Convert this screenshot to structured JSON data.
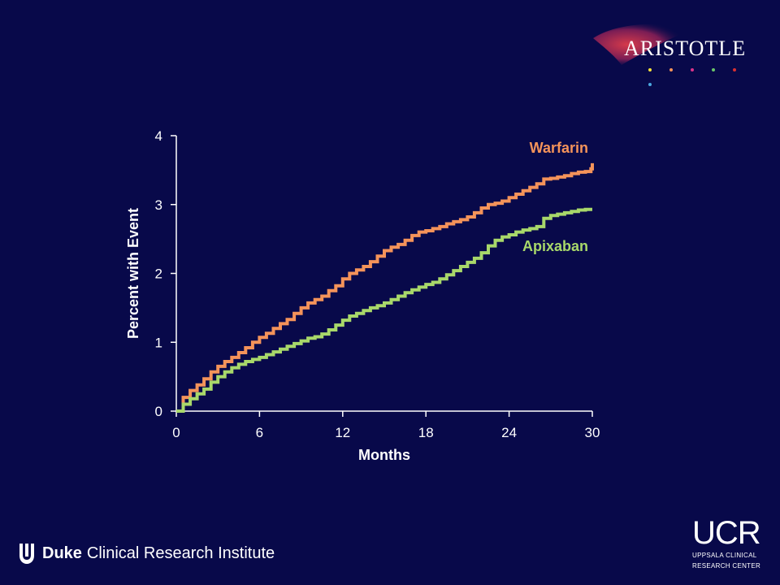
{
  "chart_data": {
    "type": "line",
    "step": true,
    "xlabel": "Months",
    "ylabel": "Percent with Event",
    "xlim": [
      0,
      30
    ],
    "ylim": [
      0,
      4
    ],
    "xticks": [
      0,
      6,
      12,
      18,
      24,
      30
    ],
    "yticks": [
      0,
      1,
      2,
      3,
      4
    ],
    "grid": false,
    "series": [
      {
        "name": "Warfarin",
        "color": "#f4935a",
        "x": [
          0,
          0.5,
          1,
          1.5,
          2,
          2.5,
          3,
          3.5,
          4,
          4.5,
          5,
          5.5,
          6,
          6.5,
          7,
          7.5,
          8,
          8.5,
          9,
          9.5,
          10,
          10.5,
          11,
          11.5,
          12,
          12.5,
          13,
          13.5,
          14,
          14.5,
          15,
          15.5,
          16,
          16.5,
          17,
          17.5,
          18,
          18.5,
          19,
          19.5,
          20,
          20.5,
          21,
          21.5,
          22,
          22.5,
          23,
          23.5,
          24,
          24.5,
          25,
          25.5,
          26,
          26.5,
          27,
          27.5,
          28,
          28.5,
          29,
          29.5,
          29.9,
          30
        ],
        "y": [
          0,
          0.2,
          0.3,
          0.38,
          0.47,
          0.57,
          0.65,
          0.72,
          0.78,
          0.85,
          0.92,
          1.0,
          1.07,
          1.13,
          1.2,
          1.27,
          1.33,
          1.42,
          1.5,
          1.57,
          1.62,
          1.67,
          1.75,
          1.82,
          1.92,
          2.0,
          2.05,
          2.1,
          2.17,
          2.25,
          2.33,
          2.38,
          2.42,
          2.48,
          2.55,
          2.6,
          2.62,
          2.65,
          2.68,
          2.72,
          2.75,
          2.78,
          2.82,
          2.88,
          2.95,
          3.0,
          3.02,
          3.05,
          3.1,
          3.15,
          3.2,
          3.25,
          3.3,
          3.37,
          3.38,
          3.4,
          3.42,
          3.45,
          3.47,
          3.48,
          3.52,
          3.6
        ]
      },
      {
        "name": "Apixaban",
        "color": "#a8d86a",
        "x": [
          0,
          0.5,
          1,
          1.5,
          2,
          2.5,
          3,
          3.5,
          4,
          4.5,
          5,
          5.5,
          6,
          6.5,
          7,
          7.5,
          8,
          8.5,
          9,
          9.5,
          10,
          10.5,
          11,
          11.5,
          12,
          12.5,
          13,
          13.5,
          14,
          14.5,
          15,
          15.5,
          16,
          16.5,
          17,
          17.5,
          18,
          18.5,
          19,
          19.5,
          20,
          20.5,
          21,
          21.5,
          22,
          22.5,
          23,
          23.5,
          24,
          24.5,
          25,
          25.5,
          26,
          26.5,
          27,
          27.5,
          28,
          28.5,
          29,
          29.5,
          30
        ],
        "y": [
          0,
          0.1,
          0.18,
          0.25,
          0.32,
          0.42,
          0.5,
          0.57,
          0.63,
          0.68,
          0.72,
          0.75,
          0.78,
          0.82,
          0.86,
          0.9,
          0.94,
          0.98,
          1.02,
          1.06,
          1.08,
          1.12,
          1.18,
          1.25,
          1.32,
          1.38,
          1.42,
          1.46,
          1.5,
          1.53,
          1.57,
          1.62,
          1.67,
          1.72,
          1.76,
          1.8,
          1.84,
          1.87,
          1.92,
          1.98,
          2.04,
          2.1,
          2.16,
          2.22,
          2.3,
          2.4,
          2.48,
          2.53,
          2.56,
          2.6,
          2.63,
          2.65,
          2.68,
          2.8,
          2.84,
          2.86,
          2.88,
          2.9,
          2.92,
          2.93,
          2.93
        ]
      }
    ]
  },
  "logos": {
    "aristotle": "ARISTOTLE",
    "aristotle_dot_colors": [
      "#f7e23a",
      "#f4935a",
      "#d9348a",
      "#6ac46a",
      "#d93030",
      "#4aa8e0"
    ],
    "duke_bold": "Duke",
    "duke_rest": "Clinical Research Institute",
    "ucr_big": "UCR",
    "ucr_line1": "UPPSALA CLINICAL",
    "ucr_line2": "RESEARCH CENTER"
  }
}
